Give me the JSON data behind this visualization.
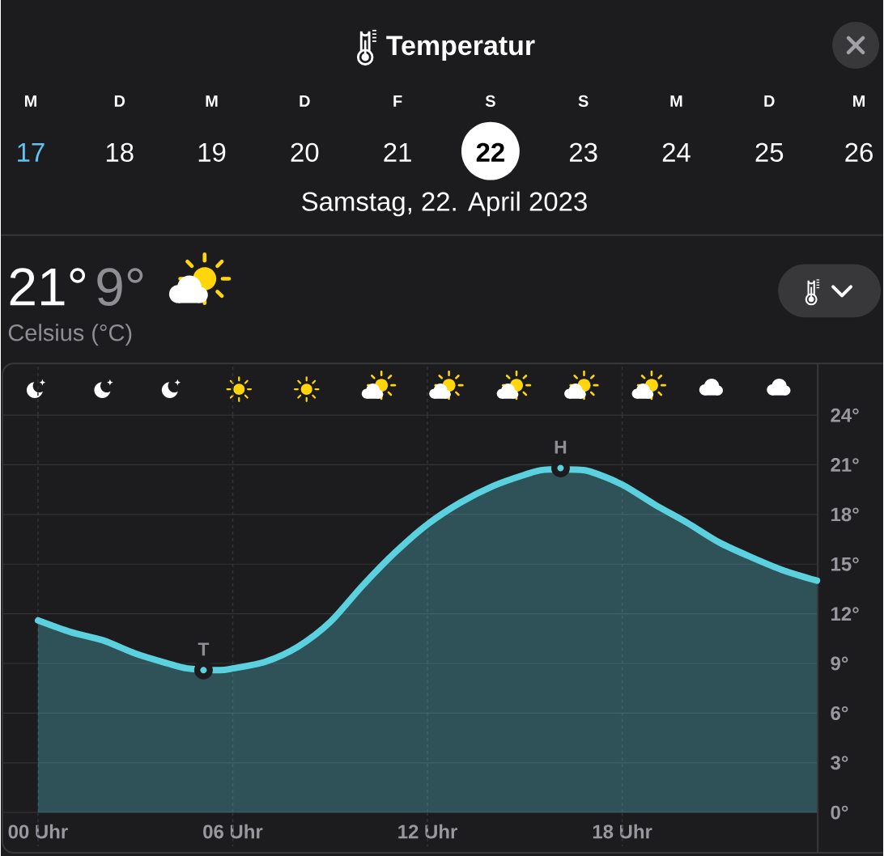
{
  "chart_data": {
    "type": "area",
    "title": "Temperatur",
    "subtitle": "Samstag, 22. April 2023",
    "x": [
      0,
      1,
      2,
      3,
      4,
      4.6,
      5.6,
      6,
      7,
      8,
      9,
      10,
      11,
      12,
      13,
      14,
      15,
      15.6,
      16.6,
      17,
      18,
      19,
      20,
      21,
      22,
      23,
      24
    ],
    "values": [
      11.6,
      10.9,
      10.4,
      9.6,
      9.0,
      8.7,
      8.6,
      8.7,
      9.1,
      10.0,
      11.5,
      13.7,
      15.7,
      17.4,
      18.7,
      19.7,
      20.4,
      20.7,
      20.7,
      20.6,
      19.8,
      18.6,
      17.5,
      16.3,
      15.4,
      14.6,
      14.0
    ],
    "color": "#5bd1df",
    "xlim": [
      0,
      24
    ],
    "xticks": [
      {
        "value": 0,
        "label": "00 Uhr"
      },
      {
        "value": 6,
        "label": "06 Uhr"
      },
      {
        "value": 12,
        "label": "12 Uhr"
      },
      {
        "value": 18,
        "label": "18 Uhr"
      }
    ],
    "ylim": [
      0,
      24
    ],
    "yticks": [
      {
        "value": 0,
        "label": "0°"
      },
      {
        "value": 3,
        "label": "3°"
      },
      {
        "value": 6,
        "label": "6°"
      },
      {
        "value": 9,
        "label": "9°"
      },
      {
        "value": 12,
        "label": "12°"
      },
      {
        "value": 15,
        "label": "15°"
      },
      {
        "value": 18,
        "label": "18°"
      },
      {
        "value": 21,
        "label": "21°"
      },
      {
        "value": 24,
        "label": "24°"
      }
    ],
    "grid": true,
    "annotations": [
      "M",
      "D",
      "M",
      "D",
      "F",
      "S",
      "S",
      "M",
      "D",
      "M",
      "17",
      "18",
      "19",
      "20",
      "21",
      "22",
      "23",
      "24",
      "25",
      "26",
      "21°",
      "9°",
      "Celsius (°C)",
      {
        "text": "T",
        "x": 5.1,
        "y": 8.6
      },
      {
        "text": "H",
        "x": 16.1,
        "y": 20.8
      }
    ]
  }
}
